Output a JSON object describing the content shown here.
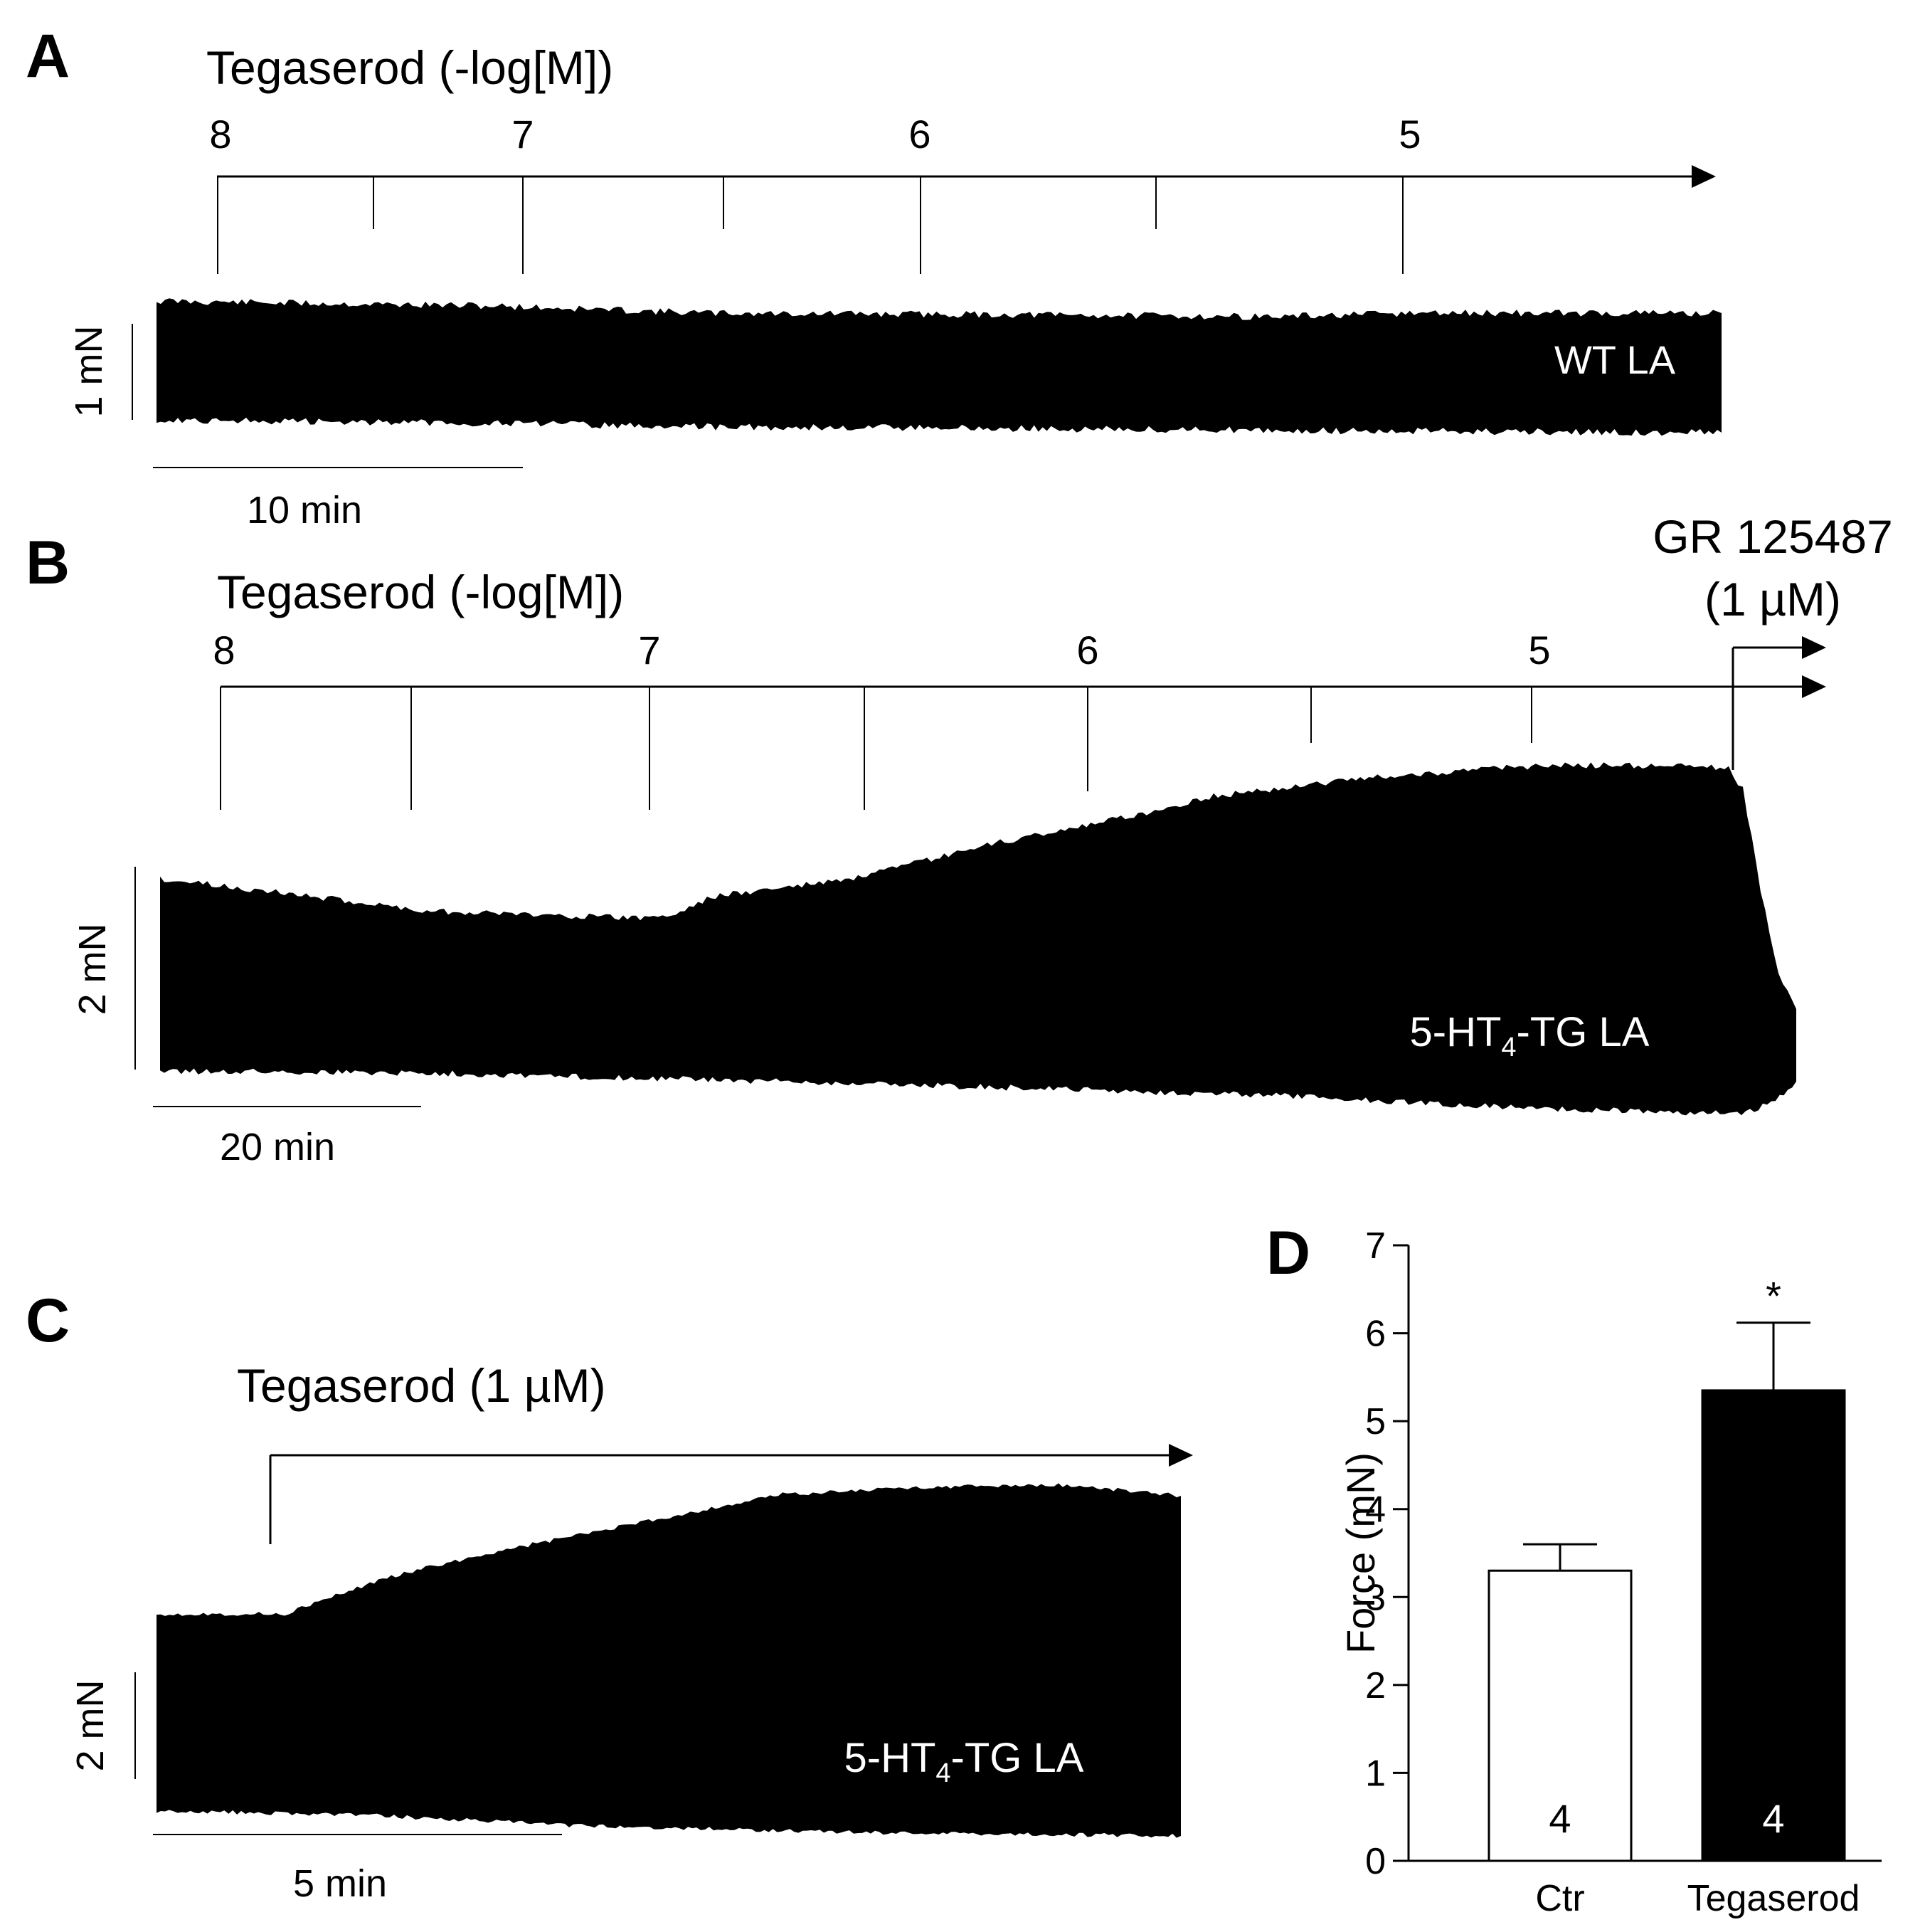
{
  "panel_a": {
    "label": "A",
    "drug_label": "Tegaserod (-log[M])",
    "ticks": [
      "8",
      "7",
      "6",
      "5"
    ],
    "trace_label": "WT LA",
    "force_scale": "1 mN",
    "time_scale": "10 min"
  },
  "panel_b": {
    "label": "B",
    "drug_label": "Tegaserod (-log[M])",
    "ticks": [
      "8",
      "7",
      "6",
      "5"
    ],
    "antagonist_label": "GR 125487",
    "antagonist_conc": "(1 µM)",
    "trace_label_main": "5-HT",
    "trace_label_sub": "4",
    "trace_label_rest": "-TG LA",
    "force_scale": "2 mN",
    "time_scale": "20 min"
  },
  "panel_c": {
    "label": "C",
    "drug_label": "Tegaserod (1 µM)",
    "trace_label_main": "5-HT",
    "trace_label_sub": "4",
    "trace_label_rest": "-TG LA",
    "force_scale": "2 mN",
    "time_scale": "5 min"
  },
  "panel_d": {
    "label": "D",
    "chart_data": {
      "type": "bar",
      "categories": [
        "Ctr",
        "Tegaserod"
      ],
      "values": [
        3.3,
        5.35
      ],
      "errors": [
        0.3,
        0.77
      ],
      "n_labels": [
        "4",
        "4"
      ],
      "fills": [
        "#ffffff",
        "#000000"
      ],
      "n_label_colors": [
        "#000000",
        "#ffffff"
      ],
      "significance": [
        "",
        "*"
      ],
      "ylabel": "Force (mN)",
      "ylim": [
        0,
        7
      ],
      "yticks": [
        "0",
        "1",
        "2",
        "3",
        "4",
        "5",
        "6",
        "7"
      ],
      "grid": false
    }
  }
}
